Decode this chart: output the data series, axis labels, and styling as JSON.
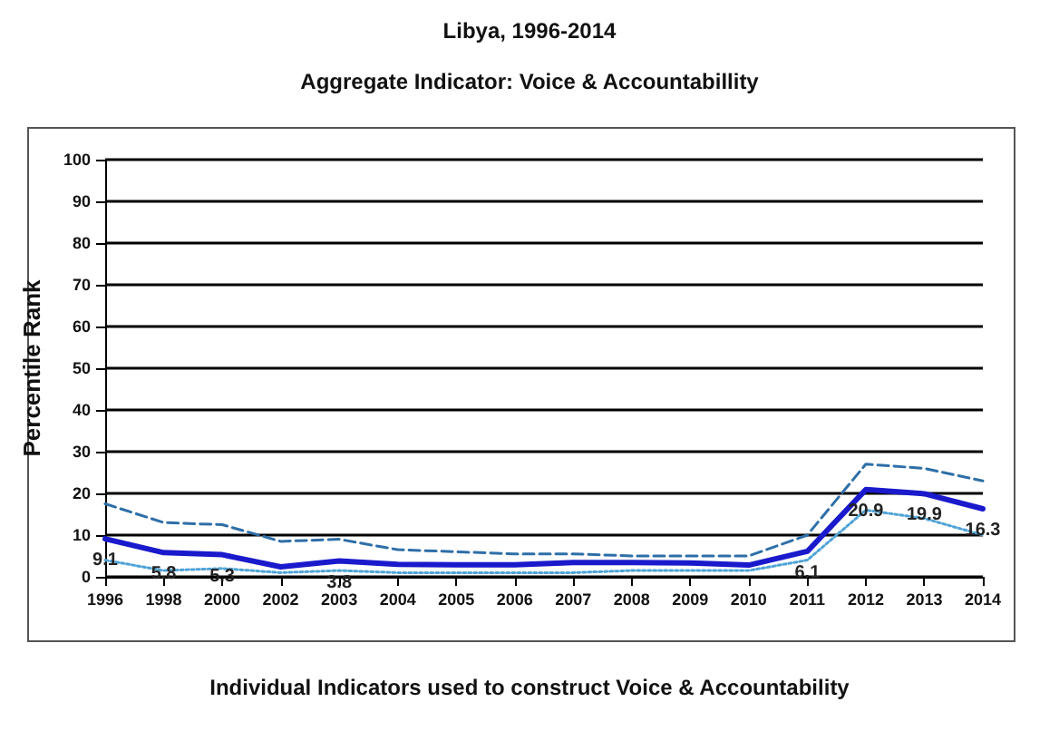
{
  "chart_data": {
    "type": "line",
    "title": "Libya, 1996-2014",
    "subtitle": "Aggregate Indicator: Voice & Accountabillity",
    "ylabel": "Percentile Rank",
    "categories": [
      "1996",
      "1998",
      "2000",
      "2002",
      "2003",
      "2004",
      "2005",
      "2006",
      "2007",
      "2008",
      "2009",
      "2010",
      "2011",
      "2012",
      "2013",
      "2014"
    ],
    "series": [
      {
        "color": "#1a1acc",
        "line_style": "solid",
        "values": [
          9.1,
          5.8,
          5.3,
          2.4,
          3.8,
          3.0,
          2.9,
          2.9,
          3.4,
          3.4,
          3.3,
          2.8,
          6.1,
          20.9,
          19.9,
          16.3
        ],
        "value_labels": [
          "9.1",
          "5.8",
          "5.3",
          null,
          "3.8",
          null,
          null,
          null,
          null,
          null,
          null,
          null,
          "6.1",
          "20.9",
          "19.9",
          "16.3"
        ]
      },
      {
        "color": "#2e6fa8",
        "line_style": "dashed",
        "values": [
          17.5,
          13,
          12.5,
          8.5,
          9,
          6.5,
          6,
          5.5,
          5.5,
          5,
          5,
          5,
          10,
          27,
          26,
          23
        ]
      },
      {
        "color": "#4fa3d6",
        "line_style": "dotted",
        "values": [
          4,
          1.5,
          2,
          1,
          1.5,
          1,
          1,
          1,
          1,
          1.5,
          1.5,
          1.5,
          4,
          16,
          14,
          10
        ]
      }
    ],
    "ylim": [
      0,
      100
    ],
    "yticks": [
      0,
      10,
      20,
      30,
      40,
      50,
      60,
      70,
      80,
      90,
      100
    ],
    "grid": "y",
    "marker": "none",
    "annotations": [
      "Individual Indicators used to construct Voice & Accountability"
    ]
  }
}
